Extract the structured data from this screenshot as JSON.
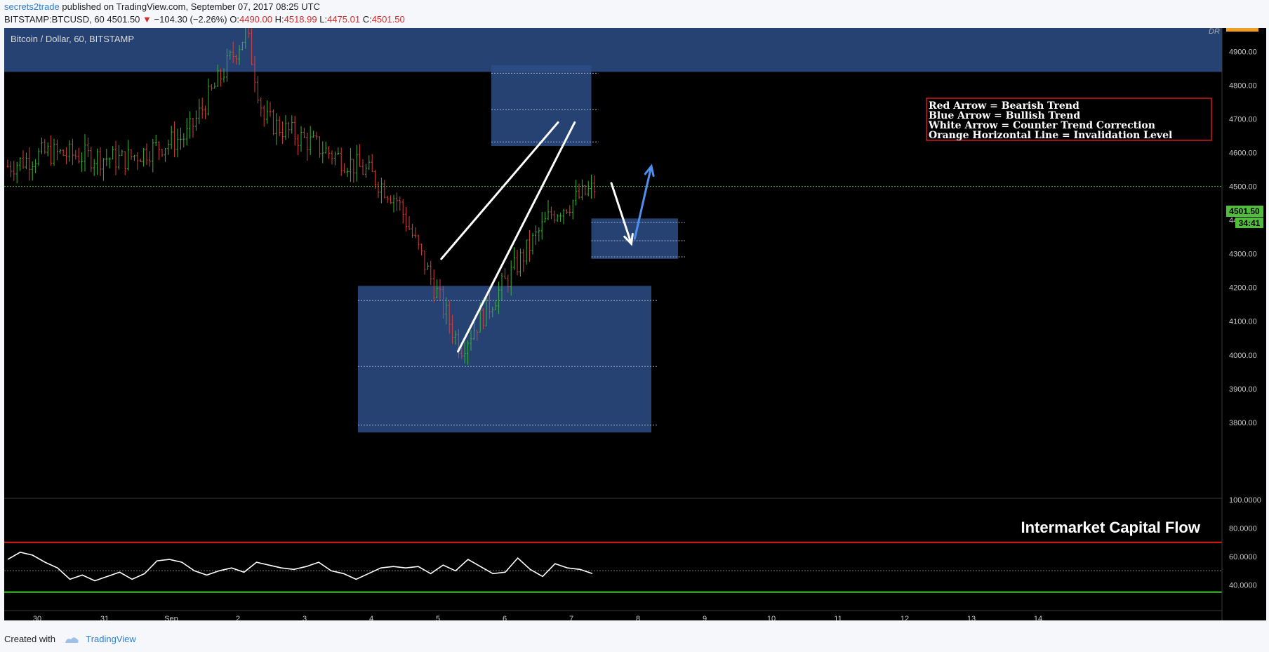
{
  "header": {
    "user": "secrets2trade",
    "published_text": "published on TradingView.com, September 07, 2017 08:25 UTC",
    "symbol": "BITSTAMP:BTCUSD, 60",
    "last": "4501.50",
    "arrow": "▼",
    "change": "−104.30 (−2.26%)",
    "o_label": "O:",
    "o": "4490.00",
    "h_label": "H:",
    "h": "4518.99",
    "l_label": "L:",
    "l": "4475.01",
    "c_label": "C:",
    "c": "4501.50"
  },
  "footer": {
    "created_with": "Created with",
    "brand": "TradingView"
  },
  "chart_data": [
    {
      "type": "candlestick",
      "title": "Bitcoin / Dollar, 60, BITSTAMP",
      "corner_label": "DR",
      "x_tick_labels": [
        "30",
        "31",
        "Sep",
        "2",
        "3",
        "4",
        "5",
        "6",
        "7",
        "8",
        "9",
        "10",
        "11",
        "12",
        "13",
        "14"
      ],
      "y_tick_labels": [
        "4900.00",
        "4800.00",
        "4700.00",
        "4600.00",
        "4500.00",
        "4400.00",
        "4300.00",
        "4200.00",
        "4100.00",
        "4000.00",
        "3900.00",
        "3800.00"
      ],
      "ylim": [
        3770,
        4970
      ],
      "current_price": "4501.50",
      "countdown": "34:41",
      "colors": {
        "up": "#3cb33c",
        "down": "#d64040",
        "zone": "#2d4d86",
        "price_line": "#4fbf3a",
        "blue_arrow": "#4f8ff0",
        "white_arrow": "#ffffff"
      },
      "legend_lines": [
        "Red Arrow = Bearish Trend",
        "Blue Arrow = Bullish Trend",
        "White Arrow = Counter Trend Correction",
        "Orange Horizontal Line = Invalidation Level"
      ],
      "close_path": [
        [
          "30",
          4560
        ],
        [
          "30",
          4600
        ],
        [
          "31",
          4580
        ],
        [
          "Sep",
          4650
        ],
        [
          "2",
          4960
        ],
        [
          "2",
          4700
        ],
        [
          "3",
          4540
        ],
        [
          "4",
          4460
        ],
        [
          "5",
          4020
        ],
        [
          "6",
          4420
        ],
        [
          "7",
          4500
        ]
      ],
      "zones": [
        {
          "x": [
            "29 Aug",
            "14 Sep"
          ],
          "y": [
            4840,
            4970
          ]
        },
        {
          "x": [
            "5.8",
            "7.3"
          ],
          "y": [
            4620,
            4860
          ]
        },
        {
          "x": [
            "7.3",
            "8.6"
          ],
          "y": [
            4285,
            4405
          ]
        },
        {
          "x": [
            "3.8",
            "8.2"
          ],
          "y": [
            3770,
            4205
          ]
        }
      ],
      "annotations": [
        {
          "type": "line",
          "from": [
            "5.05",
            4285
          ],
          "to": [
            "6.8",
            4690
          ]
        },
        {
          "type": "line",
          "from": [
            "5.3",
            4010
          ],
          "to": [
            "7.05",
            4690
          ]
        },
        {
          "type": "arrow",
          "color": "white",
          "from": [
            "7.6",
            4510
          ],
          "to": [
            "7.9",
            4330
          ]
        },
        {
          "type": "arrow",
          "color": "blue",
          "from": [
            "7.95",
            4345
          ],
          "to": [
            "8.2",
            4560
          ]
        }
      ]
    },
    {
      "type": "line",
      "title": "Intermarket Capital Flow",
      "y_tick_labels": [
        "100.0000",
        "80.0000",
        "60.0000",
        "40.0000"
      ],
      "ylim": [
        22,
        100
      ],
      "bands": {
        "upper": 70,
        "middle": 50,
        "lower": 35
      },
      "colors": {
        "upper": "#e0201f",
        "lower": "#3ed12a",
        "line": "#ffffff"
      },
      "values": [
        58,
        63,
        61,
        56,
        52,
        44,
        47,
        43,
        46,
        49,
        44,
        48,
        57,
        58,
        56,
        50,
        47,
        50,
        52,
        49,
        56,
        54,
        52,
        51,
        53,
        56,
        50,
        48,
        44,
        48,
        52,
        53,
        52,
        53,
        48,
        54,
        50,
        58,
        53,
        48,
        49,
        59,
        51,
        46,
        55,
        52,
        51,
        48
      ]
    }
  ]
}
